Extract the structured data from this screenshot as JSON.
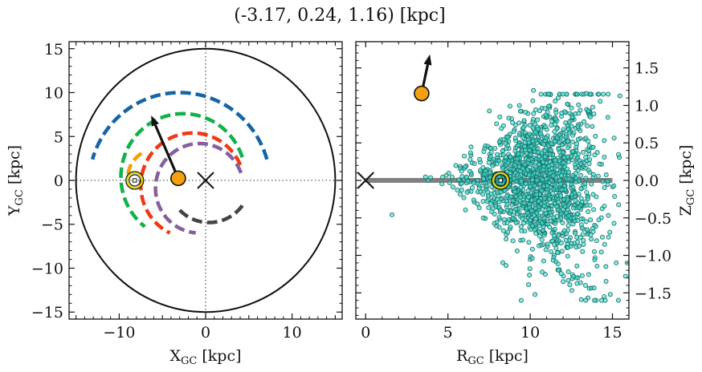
{
  "title": "(-3.17, 0.24, 1.16) [kpc]",
  "chart_data": [
    {
      "type": "scatter",
      "panel": "galactic-plane",
      "xlabel": "X",
      "xlabel_sub": "GC",
      "xlabel_unit": " [kpc]",
      "ylabel": "Y",
      "ylabel_sub": "GC",
      "ylabel_unit": " [kpc]",
      "xlim": [
        -15.8,
        15.8
      ],
      "ylim": [
        -15.8,
        15.8
      ],
      "xticks": [
        -10,
        0,
        10
      ],
      "yticks": [
        -15,
        -10,
        -5,
        0,
        5,
        10,
        15
      ],
      "xtick_labels": [
        "−10",
        "0",
        "10"
      ],
      "ytick_labels": [
        "−15",
        "−10",
        "−5",
        "0",
        "5",
        "10",
        "15"
      ],
      "minor_step": 1,
      "boundary_circle_radius": 15,
      "crosshair_lines": {
        "x": 0,
        "y": 0,
        "style": "dotted"
      },
      "galactic_center_marker": {
        "x": 0,
        "y": 0,
        "marker": "x"
      },
      "sun": {
        "x": -8.2,
        "y": 0,
        "marker": "sun-symbol",
        "color": "#e8d400"
      },
      "target": {
        "x": -3.17,
        "y": 0.24,
        "color": "#f5a010"
      },
      "velocity_arrow": {
        "from": [
          -3.17,
          0.24
        ],
        "to": [
          -6.3,
          7.4
        ]
      },
      "spiral_arms": [
        {
          "color": "#1565a6",
          "center": [
            -3.0,
            -0.5
          ],
          "radius": 10.5,
          "start_deg": 16,
          "end_deg": 164
        },
        {
          "color": "#14b04c",
          "center": [
            -2.6,
            0.4
          ],
          "radius": 7.2,
          "start_deg": 18,
          "end_deg": 232
        },
        {
          "color": "#f4a000",
          "center": [
            -5.8,
            0.3
          ],
          "radius": 3.2,
          "start_deg": 120,
          "end_deg": 176
        },
        {
          "color": "#ee3a14",
          "center": [
            -1.5,
            -0.6
          ],
          "radius": 6.0,
          "start_deg": 23,
          "end_deg": 244
        },
        {
          "color": "#865f9e",
          "center": [
            -0.7,
            -0.9
          ],
          "radius": 5.1,
          "start_deg": 20,
          "end_deg": 265
        },
        {
          "color": "#444444",
          "center": [
            0.4,
            0.0
          ],
          "radius": 4.8,
          "start_deg": 225,
          "end_deg": 328
        }
      ]
    },
    {
      "type": "scatter",
      "panel": "meridional-plane",
      "xlabel": "R",
      "xlabel_sub": "GC",
      "xlabel_unit": " [kpc]",
      "ylabel": "Z",
      "ylabel_sub": "GC",
      "ylabel_unit": " [kpc]",
      "ylabel_position": "right",
      "xlim": [
        -0.6,
        16.0
      ],
      "ylim": [
        -1.85,
        1.85
      ],
      "xticks": [
        0,
        5,
        10,
        15
      ],
      "yticks": [
        -1.5,
        -1.0,
        -0.5,
        0.0,
        0.5,
        1.0,
        1.5
      ],
      "xtick_labels": [
        "0",
        "5",
        "10",
        "15"
      ],
      "ytick_labels": [
        "−1.5",
        "−1.0",
        "−0.5",
        "0.0",
        "0.5",
        "1.0",
        "1.5"
      ],
      "disk_line": {
        "x_from": 0,
        "x_to": 15,
        "y": 0,
        "color": "#808080"
      },
      "galactic_center_marker": {
        "x": 0,
        "y": 0,
        "marker": "x"
      },
      "sun": {
        "x": 8.2,
        "y": 0,
        "marker": "sun-symbol",
        "color": "#e8d400"
      },
      "target": {
        "x": 3.4,
        "y": 1.16,
        "color": "#f5a010"
      },
      "velocity_arrow": {
        "from": [
          3.4,
          1.16
        ],
        "to": [
          3.9,
          1.68
        ]
      },
      "stars": {
        "color": "#40e0d0",
        "edge_color": "#1a6b66",
        "count": 1500,
        "r_range": [
          1.5,
          15.9
        ],
        "z_range": [
          -1.6,
          1.2
        ],
        "description_values": [
          [
            1.6,
            -0.46
          ],
          [
            3.8,
            0.0
          ],
          [
            6.8,
            0.0
          ],
          [
            10.2,
            1.2
          ],
          [
            11.7,
            1.1
          ],
          [
            13.4,
            1.16
          ],
          [
            13.9,
            -1.6
          ],
          [
            14.5,
            -1.55
          ],
          [
            15.9,
            -1.1
          ],
          [
            14.6,
            -1.15
          ],
          [
            10.8,
            -0.62
          ],
          [
            13.9,
            -0.95
          ]
        ]
      }
    }
  ]
}
